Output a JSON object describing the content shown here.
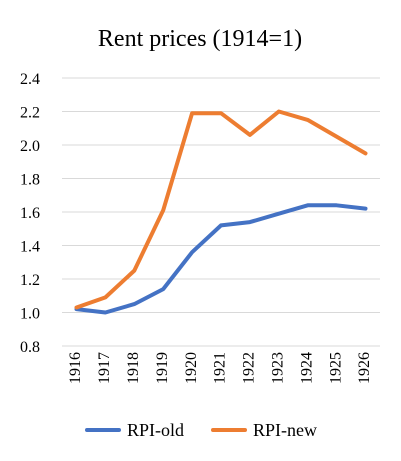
{
  "chart_data": {
    "type": "line",
    "title": "Rent prices (1914=1)",
    "x": [
      "1916",
      "1917",
      "1918",
      "1919",
      "1920",
      "1921",
      "1922",
      "1923",
      "1924",
      "1925",
      "1926"
    ],
    "series": [
      {
        "name": "RPI-old",
        "color": "#4472C4",
        "values": [
          1.02,
          1.0,
          1.05,
          1.14,
          1.36,
          1.52,
          1.54,
          1.59,
          1.64,
          1.64,
          1.62
        ]
      },
      {
        "name": "RPI-new",
        "color": "#ED7D31",
        "values": [
          1.03,
          1.09,
          1.25,
          1.61,
          2.19,
          2.19,
          2.06,
          2.2,
          2.15,
          2.05,
          1.95
        ]
      }
    ],
    "ylim": [
      0.8,
      2.4
    ],
    "yticks": [
      "0.8",
      "1.0",
      "1.2",
      "1.4",
      "1.6",
      "1.8",
      "2.0",
      "2.2",
      "2.4"
    ],
    "grid": true,
    "legend": "bottom",
    "xlabel": "",
    "ylabel": ""
  }
}
